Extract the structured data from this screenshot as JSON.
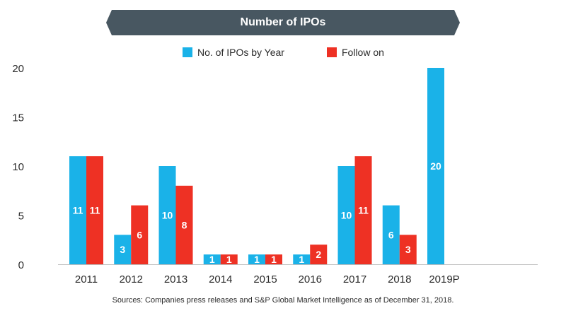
{
  "chart_data": {
    "type": "bar",
    "title": "Number of IPOs",
    "categories": [
      "2011",
      "2012",
      "2013",
      "2014",
      "2015",
      "2016",
      "2017",
      "2018",
      "2019P"
    ],
    "series": [
      {
        "name": "No. of IPOs by Year",
        "values": [
          11,
          3,
          10,
          1,
          1,
          1,
          10,
          6,
          20
        ],
        "color": "#1ab2e8"
      },
      {
        "name": "Follow on",
        "values": [
          11,
          6,
          8,
          1,
          1,
          2,
          11,
          3,
          null
        ],
        "color": "#ee3124"
      }
    ],
    "yticks": [
      0,
      5,
      10,
      15,
      20
    ],
    "ylim": [
      0,
      20
    ],
    "grid": false,
    "legend_position": "top-center",
    "data_label_color": "#ffffff",
    "axis_text_color": "#2b2b2b"
  },
  "header": {
    "title_bg": "#485761"
  },
  "footer": {
    "source": "Sources: Companies press releases and S&P Global Market Intelligence as of December 31, 2018."
  }
}
